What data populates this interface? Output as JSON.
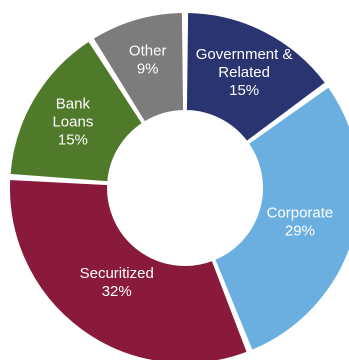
{
  "chart_data": {
    "type": "pie",
    "donut": true,
    "categories": [
      "Government & Related",
      "Corporate",
      "Securitized",
      "Bank Loans",
      "Other"
    ],
    "values": [
      15,
      29,
      32,
      15,
      9
    ],
    "value_labels": [
      "15%",
      "29%",
      "32%",
      "15%",
      "9%"
    ],
    "label_lines": [
      [
        "Government &",
        "Related"
      ],
      [
        "Corporate"
      ],
      [
        "Securitized"
      ],
      [
        "Bank",
        "Loans"
      ],
      [
        "Other"
      ]
    ],
    "colors": [
      "#2a3470",
      "#6aafe0",
      "#8a1a3c",
      "#4f7a2a",
      "#7c7c7c"
    ],
    "start": "12 o'clock",
    "direction": "clockwise",
    "legend": "none"
  }
}
